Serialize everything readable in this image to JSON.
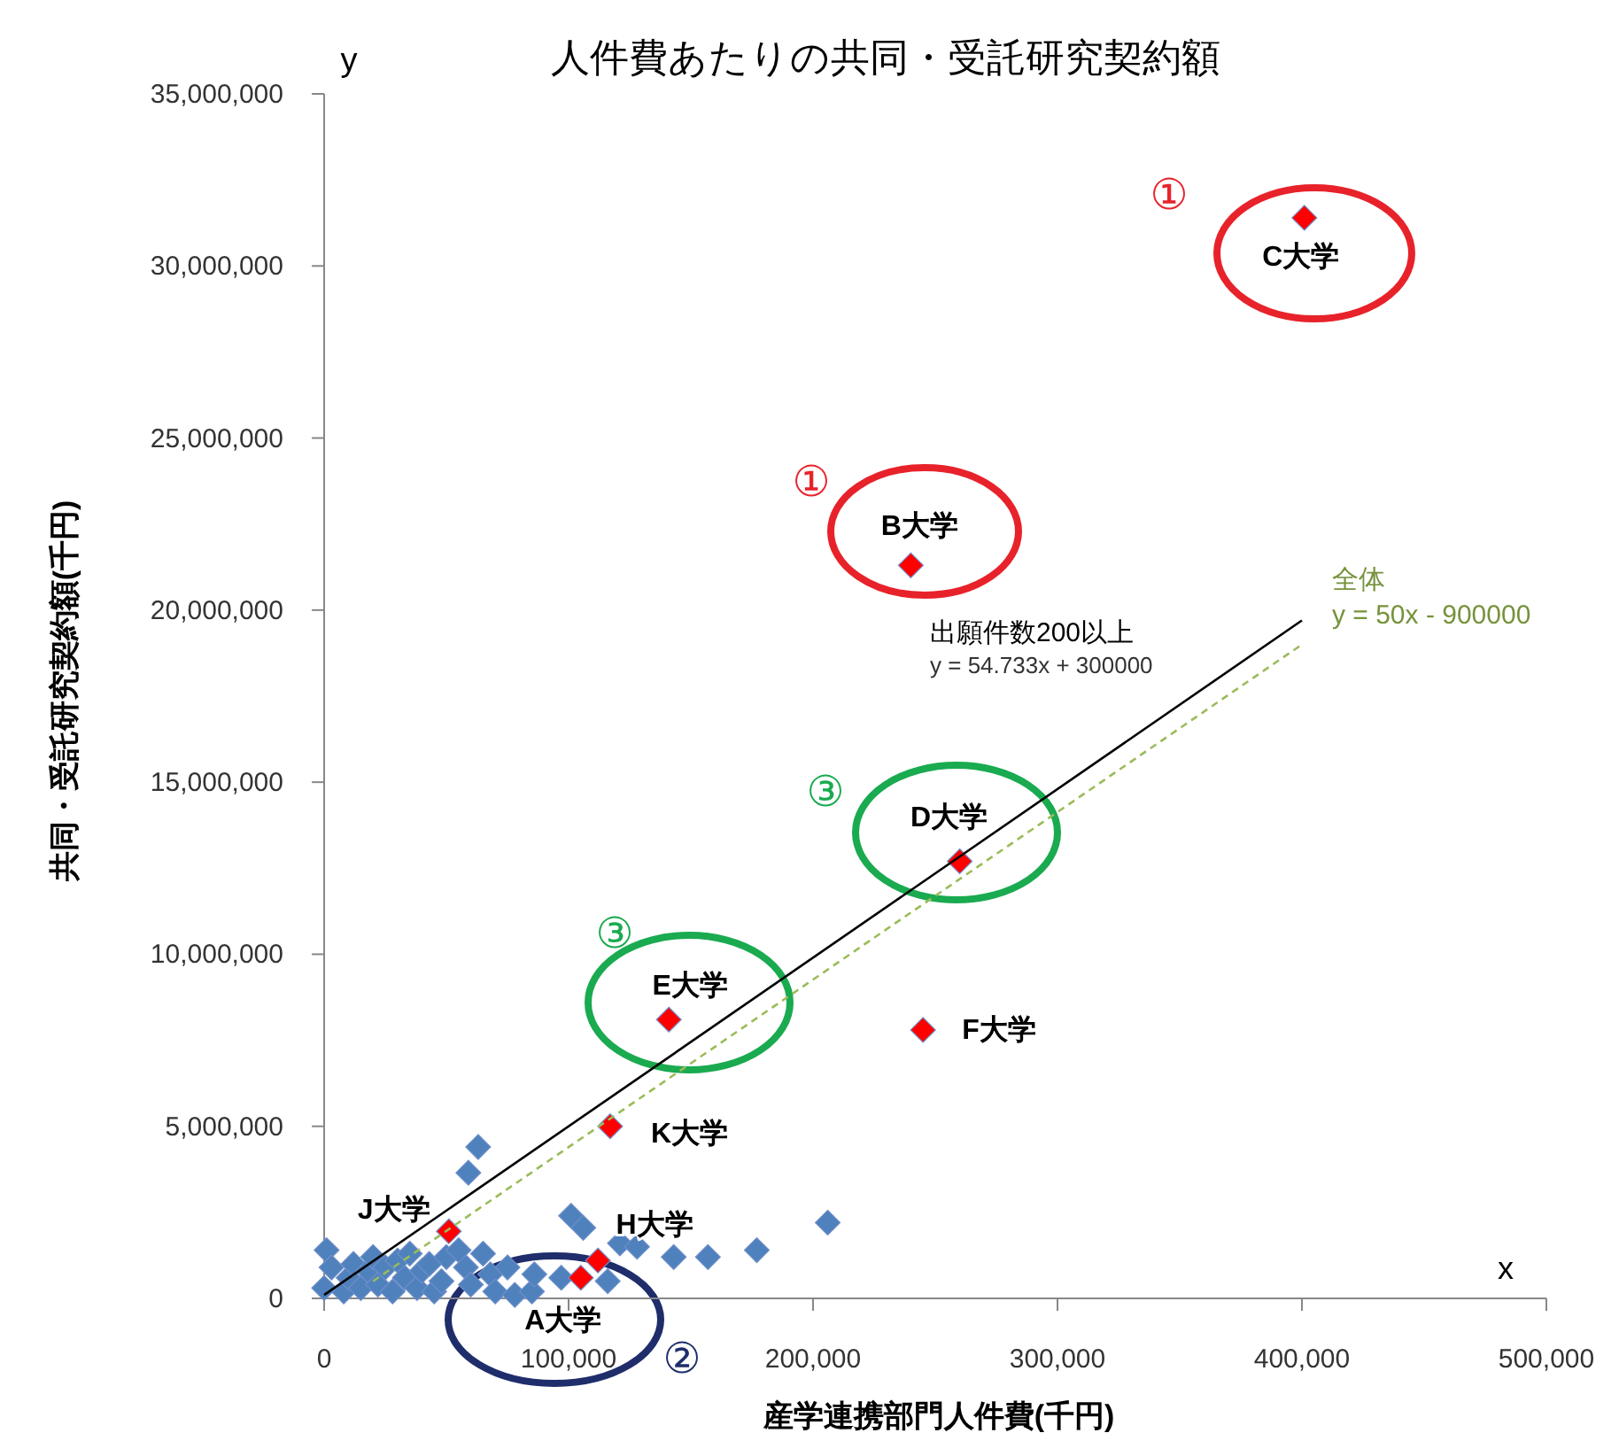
{
  "chart_data": {
    "type": "scatter",
    "title": "人件費あたりの共同・受託研究契約額",
    "xlabel": "産学連携部門人件費(千円)",
    "ylabel": "共同・受託研究契約額(千円)",
    "xlim": [
      0,
      500000
    ],
    "ylim": [
      0,
      35000000
    ],
    "xticks": [
      0,
      {
        "value": 100000,
        "label": "100,000"
      },
      {
        "value": 200000,
        "label": "200,000"
      },
      {
        "value": 300000,
        "label": "300,000"
      },
      {
        "value": 400000,
        "label": "400,000"
      },
      {
        "value": 500000,
        "label": "500,000"
      }
    ],
    "yticks": [
      0,
      {
        "value": 5000000,
        "label": "5,000,000"
      },
      {
        "value": 10000000,
        "label": "10,000,000"
      },
      {
        "value": 15000000,
        "label": "15,000,000"
      },
      {
        "value": 20000000,
        "label": "20,000,000"
      },
      {
        "value": 25000000,
        "label": "25,000,000"
      },
      {
        "value": 30000000,
        "label": "30,000,000"
      },
      {
        "value": 35000000,
        "label": "35,000,000"
      }
    ],
    "grid": false,
    "series": [
      {
        "marker": "diamond",
        "color": "#4f81bd",
        "x": [
          1000,
          3000,
          8000,
          10000,
          12000,
          15000,
          18000,
          20000,
          22000,
          25000,
          28000,
          30000,
          33000,
          35000,
          38000,
          40000,
          43000,
          45000,
          48000,
          50000,
          55000,
          58000,
          60000,
          65000,
          68000,
          70000,
          75000,
          78000,
          85000,
          97000,
          116000,
          121000,
          63000,
          59000,
          101000,
          106000,
          206000,
          177000,
          157000,
          143000,
          128000,
          86000,
          0
        ],
        "values": [
          1400000,
          900000,
          200000,
          600000,
          1000000,
          300000,
          800000,
          1200000,
          400000,
          900000,
          200000,
          1100000,
          600000,
          1300000,
          300000,
          800000,
          1000000,
          200000,
          500000,
          1200000,
          1400000,
          900000,
          400000,
          1300000,
          700000,
          200000,
          900000,
          100000,
          200000,
          600000,
          500000,
          1600000,
          4400000,
          3650000,
          2400000,
          2050000,
          2200000,
          1400000,
          1200000,
          1200000,
          1500000,
          700000,
          300000
        ]
      },
      {
        "marker": "diamond",
        "color": "#ff0000",
        "x": [
          401000,
          240000,
          260000,
          141000,
          245000,
          117000,
          51000,
          112000,
          105000
        ],
        "values": [
          31400000,
          21300000,
          12700000,
          8100000,
          7800000,
          5000000,
          1950000,
          1100000,
          600000
        ]
      },
      {
        "type": "line",
        "color": "#000000",
        "line_style": "solid",
        "x": [
          0,
          400000
        ],
        "values": [
          100000,
          19700000
        ]
      },
      {
        "type": "line",
        "color": "#9bbb59",
        "line_style": "dashed",
        "x": [
          20000,
          400000
        ],
        "values": [
          500000,
          19000000
        ]
      }
    ],
    "annotations": [
      {
        "text": "C大学",
        "x": 401000,
        "y": 31400000
      },
      {
        "text": "B大学",
        "x": 240000,
        "y": 21300000
      },
      {
        "text": "D大学",
        "x": 260000,
        "y": 12700000
      },
      {
        "text": "E大学",
        "x": 141000,
        "y": 8100000
      },
      {
        "text": "F大学",
        "x": 245000,
        "y": 7800000
      },
      {
        "text": "K大学",
        "x": 117000,
        "y": 5000000
      },
      {
        "text": "J大学",
        "x": 51000,
        "y": 1950000
      },
      {
        "text": "H大学",
        "x": 112000,
        "y": 1100000
      },
      {
        "text": "A大学",
        "x": 105000,
        "y": 600000
      },
      "①",
      "①",
      "③",
      "③",
      "②",
      "出願件数200以上",
      "y = 54.733x + 300000",
      "全体",
      "y = 50x - 900000",
      "y",
      "x"
    ]
  }
}
